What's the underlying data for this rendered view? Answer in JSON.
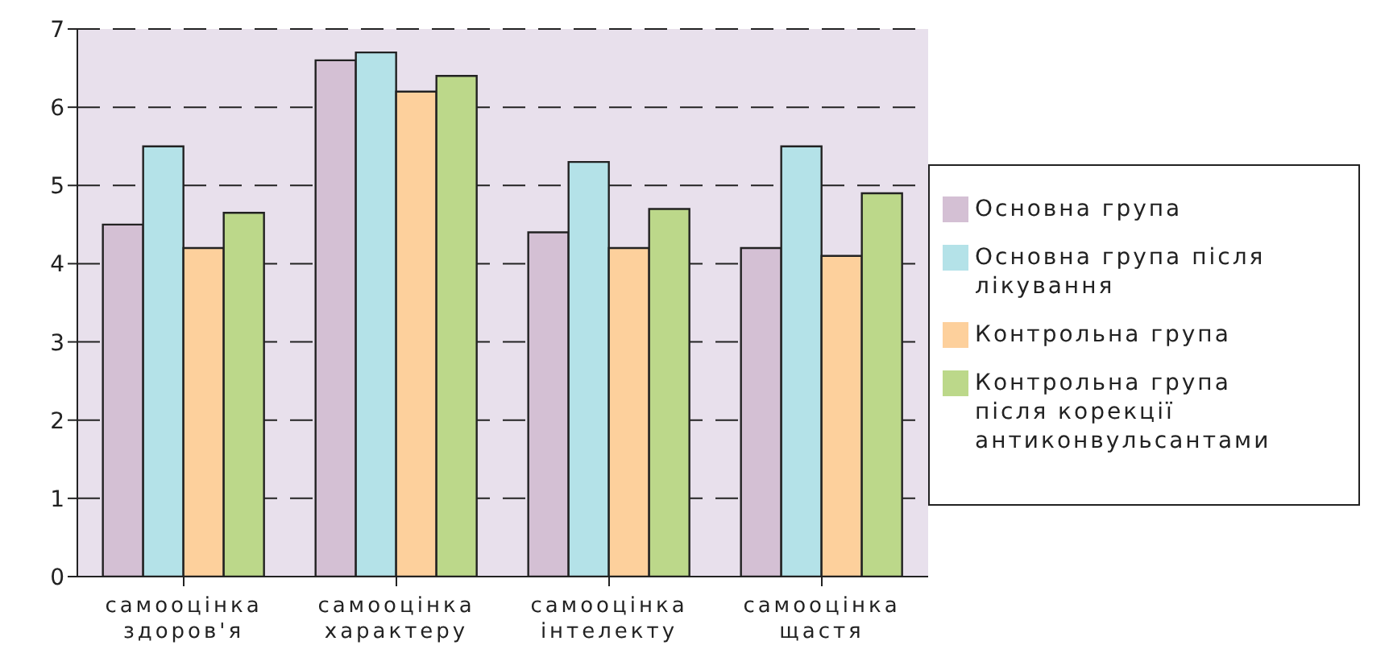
{
  "chart_data": {
    "type": "bar",
    "categories": [
      "самооцінка здоров'я",
      "самооцінка характеру",
      "самооцінка інтелекту",
      "самооцінка щастя"
    ],
    "series": [
      {
        "name": "Основна група",
        "color": "#d4c0d4",
        "values": [
          4.5,
          6.6,
          4.4,
          4.2
        ]
      },
      {
        "name": "Основна група після лікування",
        "color": "#b4e2e8",
        "values": [
          5.5,
          6.7,
          5.3,
          5.5
        ]
      },
      {
        "name": "Контрольна група",
        "color": "#fdd09c",
        "values": [
          4.2,
          6.2,
          4.2,
          4.1
        ]
      },
      {
        "name": "Контрольна група після корекції антиконвульсантами",
        "color": "#bcd88a",
        "values": [
          4.65,
          6.4,
          4.7,
          4.9
        ]
      }
    ],
    "ylim": [
      0,
      7
    ],
    "yticks": [
      0,
      1,
      2,
      3,
      4,
      5,
      6,
      7
    ],
    "grid": "y",
    "legend": "right"
  }
}
